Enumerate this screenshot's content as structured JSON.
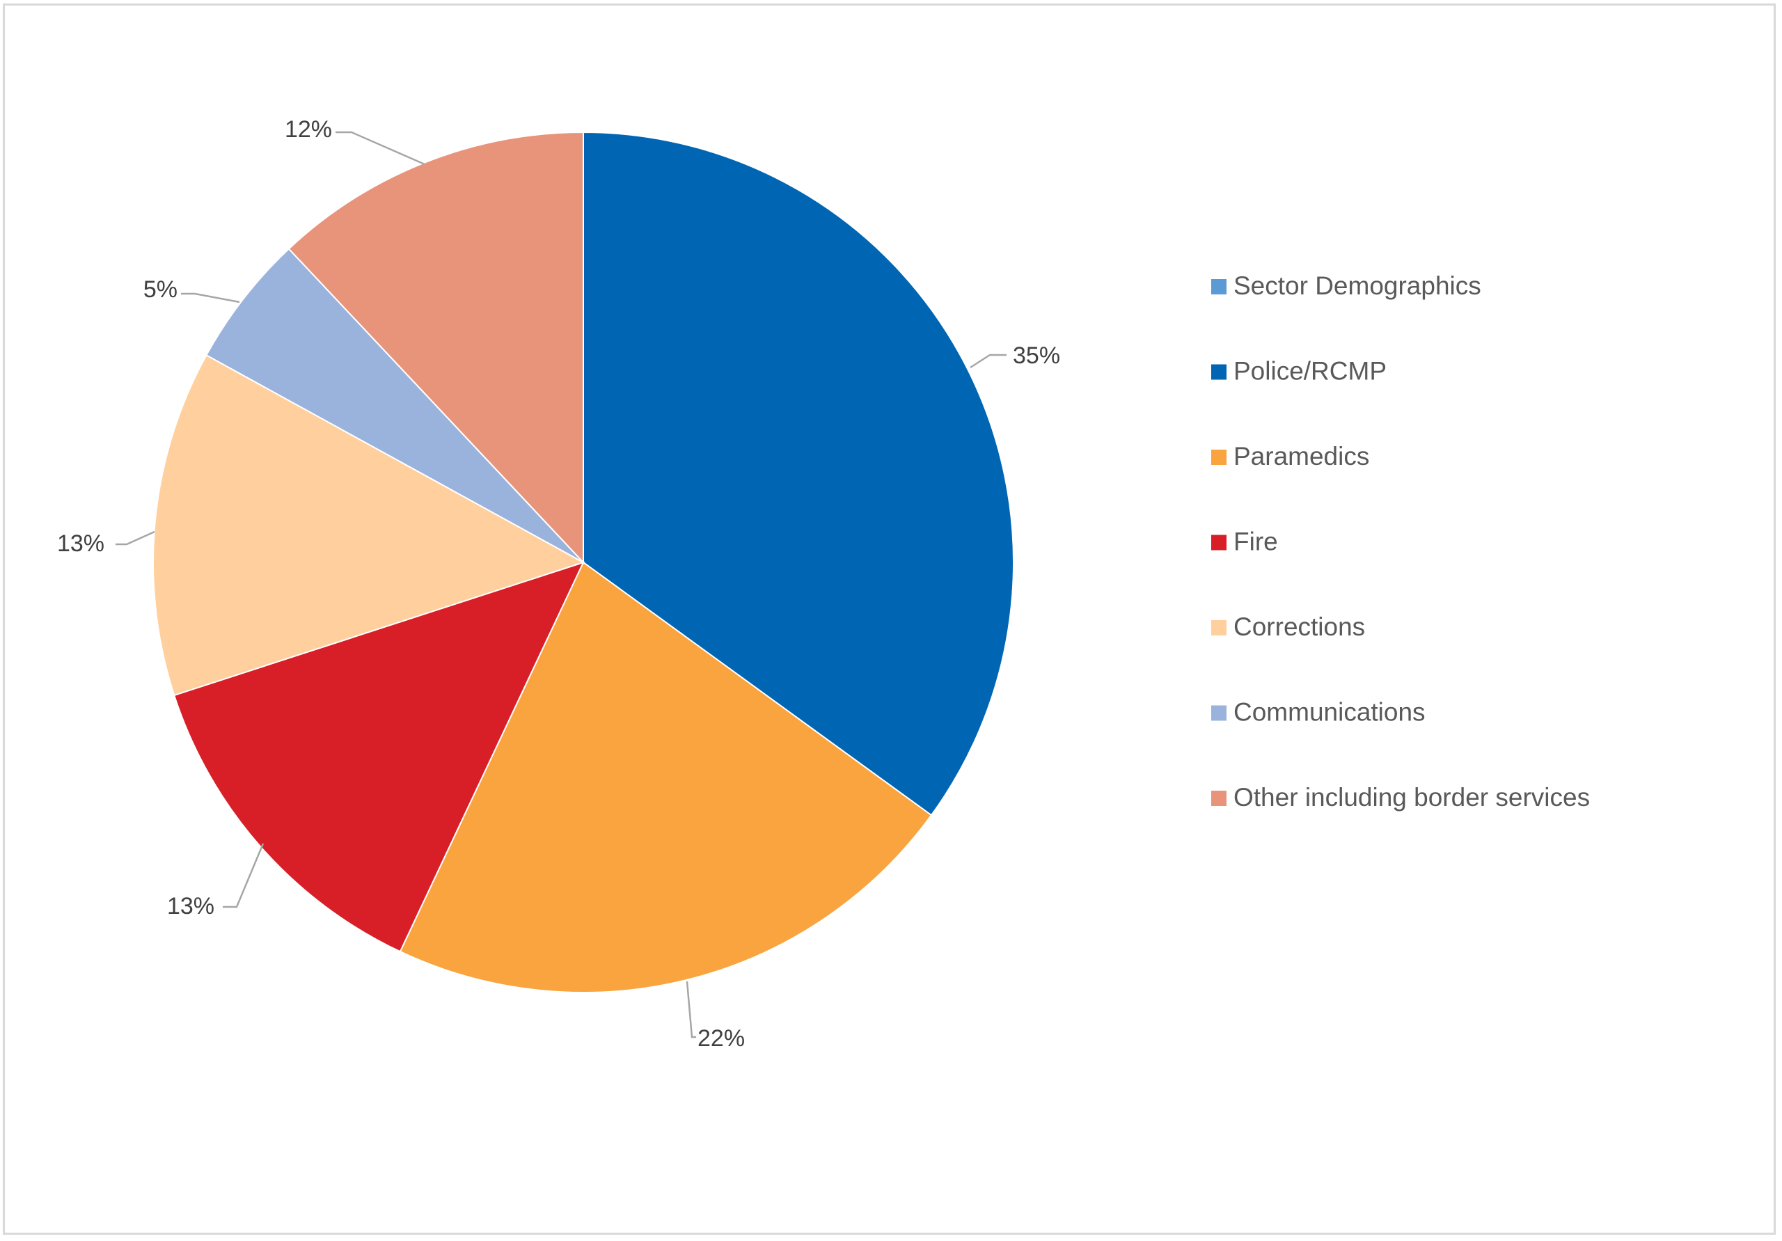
{
  "chart_data": {
    "type": "pie",
    "legend_position": "right",
    "legend": [
      {
        "name": "Sector Demographics",
        "color": "#5b9bd5"
      },
      {
        "name": "Police/RCMP",
        "color": "#0066b3"
      },
      {
        "name": "Paramedics",
        "color": "#f9a43e"
      },
      {
        "name": "Fire",
        "color": "#d81f28"
      },
      {
        "name": "Corrections",
        "color": "#ffd09d"
      },
      {
        "name": "Communications",
        "color": "#9ab3dd"
      },
      {
        "name": "Other including border services",
        "color": "#e8947b"
      }
    ],
    "slices": [
      {
        "name": "Police/RCMP",
        "value": 35,
        "label": "35%",
        "color": "#0066b3"
      },
      {
        "name": "Paramedics",
        "value": 22,
        "label": "22%",
        "color": "#f9a43e"
      },
      {
        "name": "Fire",
        "value": 13,
        "label": "13%",
        "color": "#d81f28"
      },
      {
        "name": "Corrections",
        "value": 13,
        "label": "13%",
        "color": "#ffd09d"
      },
      {
        "name": "Communications",
        "value": 5,
        "label": "5%",
        "color": "#9ab3dd"
      },
      {
        "name": "Other including border services",
        "value": 12,
        "label": "12%",
        "color": "#e8947b"
      }
    ]
  }
}
